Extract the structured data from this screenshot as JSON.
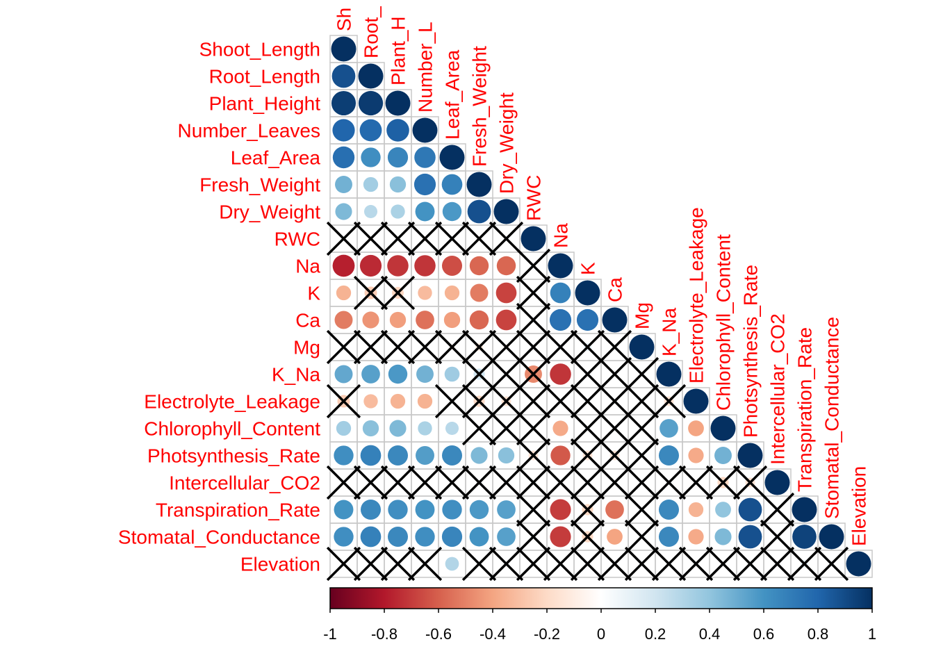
{
  "chart_data": {
    "type": "heatmap",
    "style": "lower-triangle correlation circles; black X marks non-significant cells",
    "variables": [
      "Shoot_Length",
      "Root_Length",
      "Plant_Height",
      "Number_Leaves",
      "Leaf_Area",
      "Fresh_Weight",
      "Dry_Weight",
      "RWC",
      "Na",
      "K",
      "Ca",
      "Mg",
      "K_Na",
      "Electrolyte_Leakage",
      "Chlorophyll_Content",
      "Photsynthesis_Rate",
      "Intercellular_CO2",
      "Transpiration_Rate",
      "Stomatal_Conductance",
      "Elevation"
    ],
    "top_labels": [
      "Sh",
      "Root_",
      "Plant_H",
      "Number_L",
      "Leaf_Area",
      "Fresh_Weight",
      "Dry_Weight",
      "RWC",
      "Na",
      "K",
      "Ca",
      "Mg",
      "K_Na",
      "Electrolyte_Leakage",
      "Chlorophyll_Content",
      "Photsynthesis_Rate",
      "Intercellular_CO2",
      "Transpiration_Rate",
      "Stomatal_Conductance",
      "Elevation"
    ],
    "rows": [
      [
        1
      ],
      [
        0.88,
        1
      ],
      [
        0.95,
        0.96,
        1
      ],
      [
        0.8,
        0.78,
        0.82,
        1
      ],
      [
        0.76,
        0.62,
        0.66,
        0.72,
        1
      ],
      [
        0.48,
        0.35,
        0.42,
        0.75,
        0.68,
        1
      ],
      [
        0.45,
        0.28,
        0.32,
        0.6,
        0.58,
        0.88,
        1
      ],
      [
        0.05,
        -0.05,
        0.05,
        -0.05,
        0.05,
        -0.05,
        0.05,
        1
      ],
      [
        -0.78,
        -0.75,
        -0.72,
        -0.72,
        -0.65,
        -0.58,
        -0.58,
        0.05,
        1
      ],
      [
        -0.35,
        -0.25,
        -0.22,
        -0.32,
        -0.35,
        -0.52,
        -0.68,
        0.05,
        0.68,
        1
      ],
      [
        -0.52,
        -0.45,
        -0.42,
        -0.55,
        -0.42,
        -0.58,
        -0.68,
        0.05,
        0.75,
        0.75,
        1
      ],
      [
        0.05,
        0.05,
        0.05,
        0.05,
        -0.05,
        -0.1,
        -0.05,
        0.05,
        0.05,
        0.1,
        0.05,
        1
      ],
      [
        0.52,
        0.55,
        0.58,
        0.48,
        0.36,
        0.2,
        0.05,
        -0.48,
        -0.72,
        0.05,
        0.05,
        0.05,
        1
      ],
      [
        -0.25,
        -0.32,
        -0.35,
        -0.35,
        0.05,
        -0.2,
        -0.15,
        0.05,
        0.05,
        0.05,
        0.05,
        0.05,
        -0.15,
        1
      ],
      [
        0.35,
        0.42,
        0.45,
        0.32,
        0.28,
        0.05,
        0.05,
        0.05,
        -0.38,
        0.05,
        0.05,
        0.05,
        0.55,
        -0.4,
        1
      ],
      [
        0.62,
        0.68,
        0.65,
        0.56,
        0.65,
        0.45,
        0.42,
        -0.15,
        -0.62,
        -0.15,
        -0.15,
        0.05,
        0.65,
        -0.38,
        0.48,
        1
      ],
      [
        0.05,
        0.05,
        0.05,
        0.05,
        0.05,
        0.05,
        0.05,
        0.05,
        0.05,
        0.05,
        0.05,
        0.05,
        0.05,
        0.05,
        -0.2,
        -0.15,
        1
      ],
      [
        0.6,
        0.65,
        0.62,
        0.6,
        0.62,
        0.58,
        0.55,
        0.05,
        -0.7,
        -0.2,
        -0.55,
        0.05,
        0.65,
        -0.35,
        0.4,
        0.88,
        0.05,
        1
      ],
      [
        0.62,
        0.68,
        0.65,
        0.62,
        0.66,
        0.6,
        0.55,
        0.05,
        -0.7,
        -0.2,
        -0.4,
        0.05,
        0.65,
        -0.38,
        0.45,
        0.88,
        0.05,
        0.93,
        1
      ],
      [
        0.05,
        0.05,
        0.05,
        0.05,
        0.3,
        0.05,
        0.05,
        0.05,
        0.05,
        0.05,
        0.05,
        0.05,
        0.05,
        0.05,
        0.05,
        0.05,
        0.05,
        0.1,
        0.05,
        1
      ]
    ],
    "not_significant": [
      [
        7,
        0
      ],
      [
        7,
        1
      ],
      [
        7,
        2
      ],
      [
        7,
        3
      ],
      [
        7,
        4
      ],
      [
        7,
        5
      ],
      [
        7,
        6
      ],
      [
        8,
        7
      ],
      [
        9,
        1
      ],
      [
        9,
        2
      ],
      [
        9,
        7
      ],
      [
        10,
        7
      ],
      [
        11,
        0
      ],
      [
        11,
        1
      ],
      [
        11,
        2
      ],
      [
        11,
        3
      ],
      [
        11,
        4
      ],
      [
        11,
        5
      ],
      [
        11,
        6
      ],
      [
        11,
        7
      ],
      [
        11,
        8
      ],
      [
        11,
        9
      ],
      [
        11,
        10
      ],
      [
        12,
        5
      ],
      [
        12,
        6
      ],
      [
        12,
        7
      ],
      [
        12,
        9
      ],
      [
        12,
        10
      ],
      [
        12,
        11
      ],
      [
        13,
        0
      ],
      [
        13,
        4
      ],
      [
        13,
        5
      ],
      [
        13,
        6
      ],
      [
        13,
        7
      ],
      [
        13,
        8
      ],
      [
        13,
        9
      ],
      [
        13,
        10
      ],
      [
        13,
        11
      ],
      [
        13,
        12
      ],
      [
        14,
        5
      ],
      [
        14,
        6
      ],
      [
        14,
        7
      ],
      [
        14,
        9
      ],
      [
        14,
        10
      ],
      [
        14,
        11
      ],
      [
        15,
        7
      ],
      [
        15,
        9
      ],
      [
        15,
        10
      ],
      [
        15,
        11
      ],
      [
        16,
        0
      ],
      [
        16,
        1
      ],
      [
        16,
        2
      ],
      [
        16,
        3
      ],
      [
        16,
        4
      ],
      [
        16,
        5
      ],
      [
        16,
        6
      ],
      [
        16,
        7
      ],
      [
        16,
        8
      ],
      [
        16,
        9
      ],
      [
        16,
        10
      ],
      [
        16,
        11
      ],
      [
        16,
        12
      ],
      [
        16,
        13
      ],
      [
        16,
        14
      ],
      [
        16,
        15
      ],
      [
        17,
        7
      ],
      [
        17,
        9
      ],
      [
        17,
        11
      ],
      [
        17,
        16
      ],
      [
        18,
        7
      ],
      [
        18,
        9
      ],
      [
        18,
        11
      ],
      [
        18,
        16
      ],
      [
        19,
        0
      ],
      [
        19,
        1
      ],
      [
        19,
        2
      ],
      [
        19,
        3
      ],
      [
        19,
        5
      ],
      [
        19,
        6
      ],
      [
        19,
        7
      ],
      [
        19,
        8
      ],
      [
        19,
        9
      ],
      [
        19,
        10
      ],
      [
        19,
        11
      ],
      [
        19,
        12
      ],
      [
        19,
        13
      ],
      [
        19,
        14
      ],
      [
        19,
        15
      ],
      [
        19,
        16
      ],
      [
        19,
        17
      ],
      [
        19,
        18
      ]
    ],
    "colorbar": {
      "range": [
        -1,
        1
      ],
      "ticks": [
        "-1",
        "-0.8",
        "-0.6",
        "-0.4",
        "-0.2",
        "0",
        "0.2",
        "0.4",
        "0.6",
        "0.8",
        "1"
      ],
      "palette": [
        "#67001f",
        "#b2182b",
        "#d6604d",
        "#f4a582",
        "#fddbc7",
        "#ffffff",
        "#d1e5f0",
        "#92c5de",
        "#4393c3",
        "#2166ac",
        "#053061"
      ]
    },
    "label_color": "#ff0000",
    "grid_color": "#c8c8c8"
  }
}
